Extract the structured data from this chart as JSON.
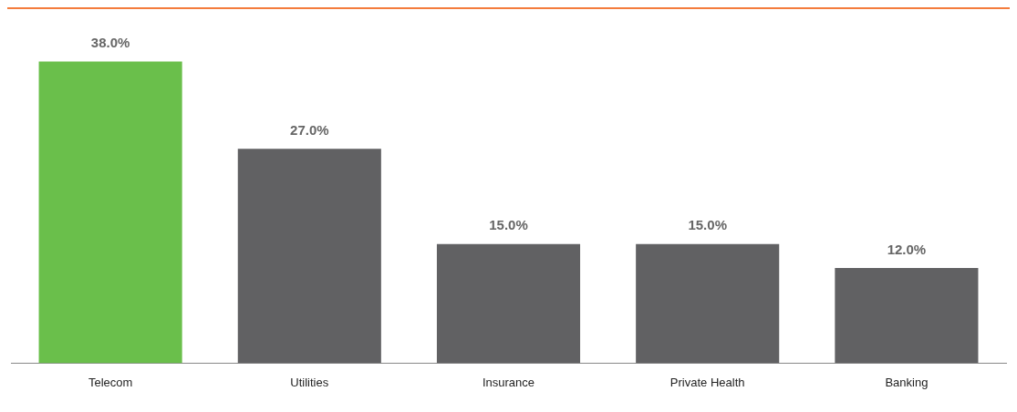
{
  "chart_data": {
    "type": "bar",
    "categories": [
      "Telecom",
      "Utilities",
      "Insurance",
      "Private Health",
      "Banking"
    ],
    "values": [
      38,
      27,
      15,
      15,
      12
    ],
    "colors": [
      "#6abf4b",
      "#616163",
      "#616163",
      "#616163",
      "#616163"
    ],
    "value_labels": [
      "38.0%",
      "27.0%",
      "15.0%",
      "15.0%",
      "12.0%"
    ],
    "grid": false,
    "legend": false
  }
}
